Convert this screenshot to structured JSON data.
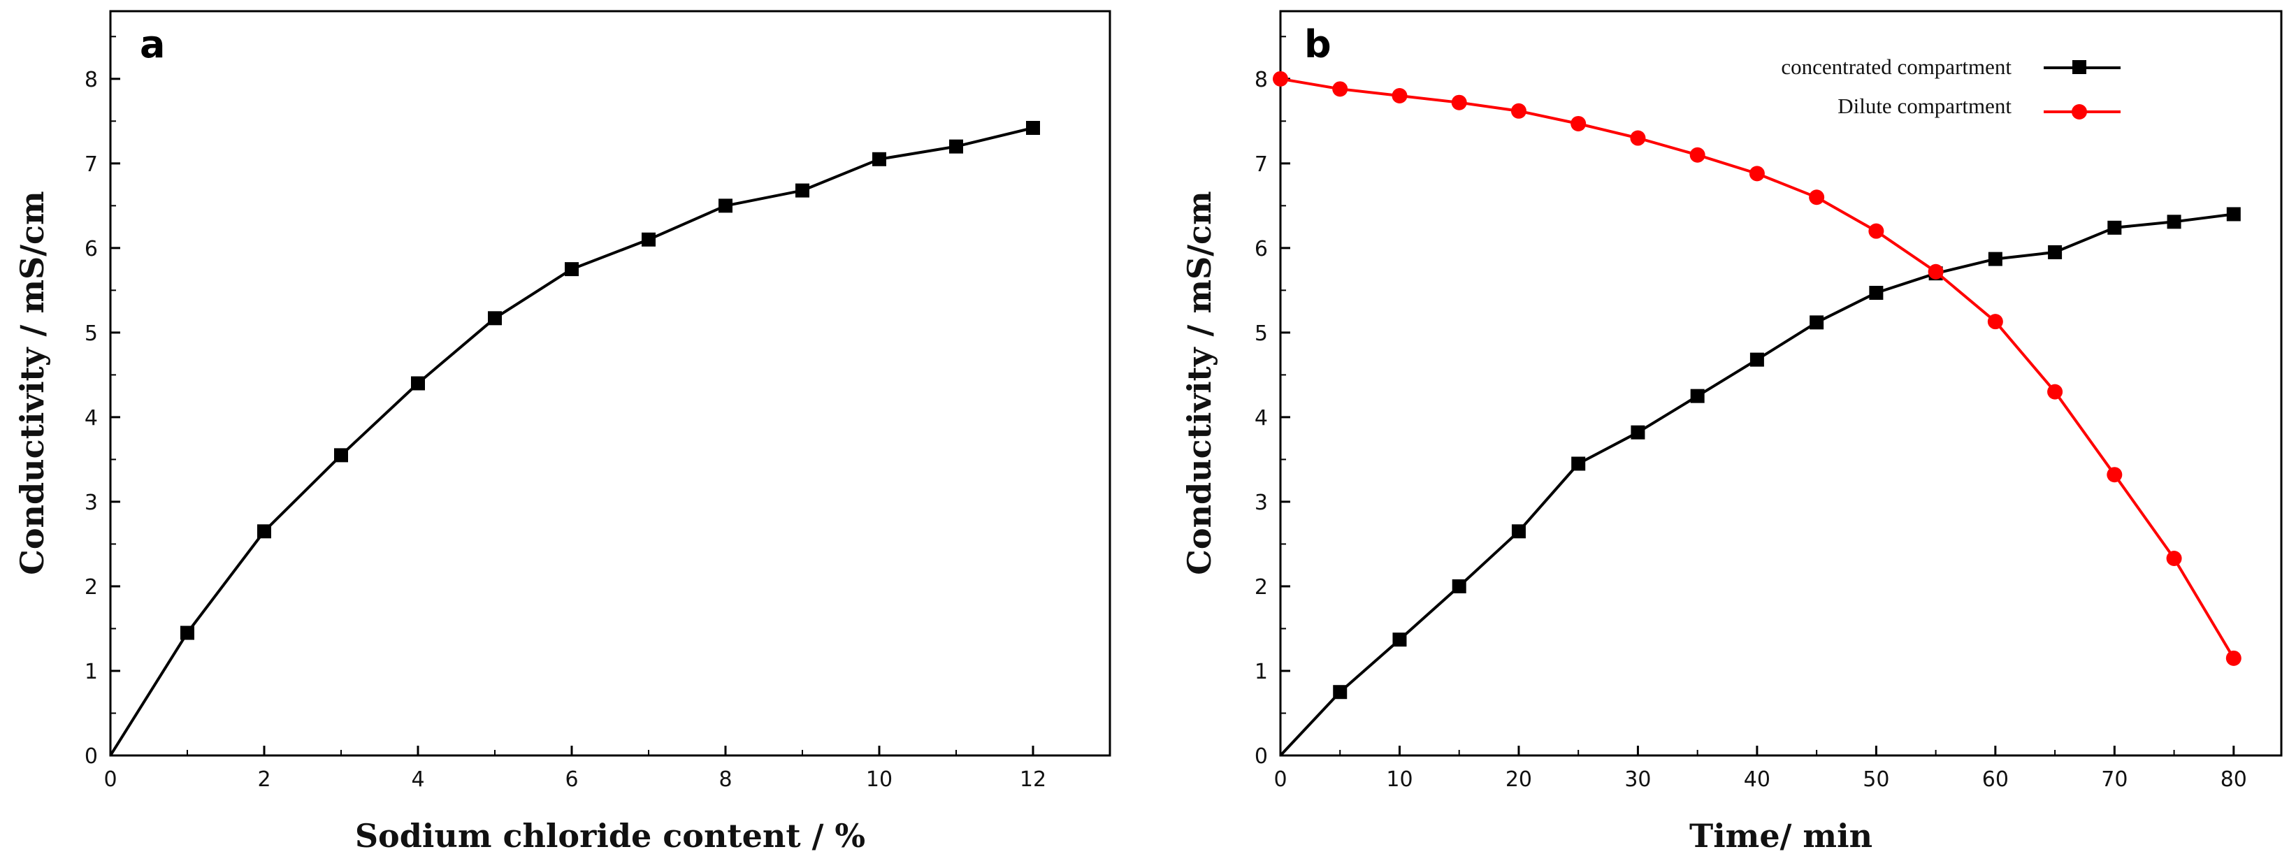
{
  "chart_data": [
    {
      "panel": "a",
      "type": "line",
      "title": "",
      "xlabel": "Sodium chloride content / %",
      "ylabel": "Conductivity / mS/cm",
      "xlim": [
        0,
        13
      ],
      "ylim": [
        0,
        8.8
      ],
      "xticks": [
        "0",
        "2",
        "4",
        "6",
        "8",
        "10",
        "12"
      ],
      "yticks": [
        "0",
        "1",
        "2",
        "3",
        "4",
        "5",
        "6",
        "7",
        "8"
      ],
      "grid": false,
      "series": [
        {
          "name": "Conductivity",
          "color": "#000000",
          "marker": "square",
          "x": [
            0,
            1,
            2,
            3,
            4,
            5,
            6,
            7,
            8,
            9,
            10,
            11,
            12
          ],
          "y": [
            0.0,
            1.45,
            2.65,
            3.55,
            4.4,
            5.17,
            5.75,
            6.1,
            6.5,
            6.68,
            7.05,
            7.2,
            7.42
          ]
        }
      ]
    },
    {
      "panel": "b",
      "type": "line",
      "title": "",
      "xlabel": "Time/ min",
      "ylabel": "Conductivity / mS/cm",
      "xlim": [
        0,
        84
      ],
      "ylim": [
        0,
        8.8
      ],
      "xticks": [
        "0",
        "10",
        "20",
        "30",
        "40",
        "50",
        "60",
        "70",
        "80"
      ],
      "yticks": [
        "0",
        "1",
        "2",
        "3",
        "4",
        "5",
        "6",
        "7",
        "8"
      ],
      "grid": false,
      "legend_position": "top-right",
      "series": [
        {
          "name": "concentrated compartment",
          "color": "#000000",
          "marker": "square",
          "x": [
            0,
            5,
            10,
            15,
            20,
            25,
            30,
            35,
            40,
            45,
            50,
            55,
            60,
            65,
            70,
            75,
            80
          ],
          "y": [
            0.0,
            0.75,
            1.37,
            2.0,
            2.65,
            3.45,
            3.82,
            4.25,
            4.68,
            5.12,
            5.47,
            5.7,
            5.87,
            5.95,
            6.24,
            6.31,
            6.4
          ]
        },
        {
          "name": "Dilute compartment",
          "color": "#ff0000",
          "marker": "circle",
          "x": [
            0,
            5,
            10,
            15,
            20,
            25,
            30,
            35,
            40,
            45,
            50,
            55,
            60,
            65,
            70,
            75,
            80
          ],
          "y": [
            8.0,
            7.88,
            7.8,
            7.72,
            7.62,
            7.47,
            7.3,
            7.1,
            6.88,
            6.6,
            6.2,
            5.72,
            5.13,
            4.3,
            3.32,
            2.33,
            1.15
          ]
        }
      ]
    }
  ]
}
